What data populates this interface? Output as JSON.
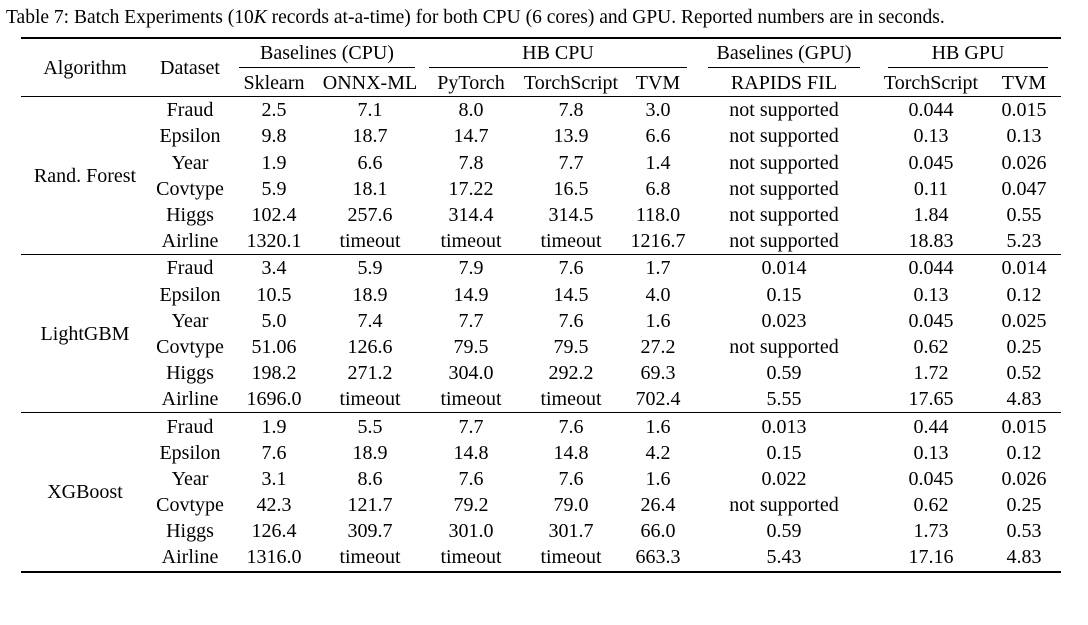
{
  "caption": {
    "prefix": "Table 7: Batch Experiments (10",
    "k": "K",
    "suffix": " records at-a-time) for both CPU (6 cores) and GPU. Reported numbers are in seconds."
  },
  "header": {
    "algorithm": "Algorithm",
    "dataset": "Dataset",
    "groups": [
      "Baselines (CPU)",
      "HB CPU",
      "Baselines (GPU)",
      "HB GPU"
    ],
    "columns": [
      "Sklearn",
      "ONNX-ML",
      "PyTorch",
      "TorchScript",
      "TVM",
      "RAPIDS FIL",
      "TorchScript",
      "TVM"
    ]
  },
  "blocks": [
    {
      "algorithm": "Rand. Forest",
      "rows": [
        {
          "dataset": "Fraud",
          "values": [
            "2.5",
            "7.1",
            "8.0",
            "7.8",
            "3.0",
            "not supported",
            "0.044",
            "0.015"
          ],
          "bold": [
            0,
            7
          ]
        },
        {
          "dataset": "Epsilon",
          "values": [
            "9.8",
            "18.7",
            "14.7",
            "13.9",
            "6.6",
            "not supported",
            "0.13",
            "0.13"
          ],
          "bold": [
            4,
            6,
            7
          ]
        },
        {
          "dataset": "Year",
          "values": [
            "1.9",
            "6.6",
            "7.8",
            "7.7",
            "1.4",
            "not supported",
            "0.045",
            "0.026"
          ],
          "bold": [
            4,
            7
          ]
        },
        {
          "dataset": "Covtype",
          "values": [
            "5.9",
            "18.1",
            "17.22",
            "16.5",
            "6.8",
            "not supported",
            "0.11",
            "0.047"
          ],
          "bold": [
            0,
            7
          ]
        },
        {
          "dataset": "Higgs",
          "values": [
            "102.4",
            "257.6",
            "314.4",
            "314.5",
            "118.0",
            "not supported",
            "1.84",
            "0.55"
          ],
          "bold": [
            0,
            7
          ]
        },
        {
          "dataset": "Airline",
          "values": [
            "1320.1",
            "timeout",
            "timeout",
            "timeout",
            "1216.7",
            "not supported",
            "18.83",
            "5.23"
          ],
          "bold": [
            4,
            7
          ]
        }
      ]
    },
    {
      "algorithm": "LightGBM",
      "rows": [
        {
          "dataset": "Fraud",
          "values": [
            "3.4",
            "5.9",
            "7.9",
            "7.6",
            "1.7",
            "0.014",
            "0.044",
            "0.014"
          ],
          "bold": [
            4,
            5,
            7
          ]
        },
        {
          "dataset": "Epsilon",
          "values": [
            "10.5",
            "18.9",
            "14.9",
            "14.5",
            "4.0",
            "0.15",
            "0.13",
            "0.12"
          ],
          "bold": [
            4,
            7
          ]
        },
        {
          "dataset": "Year",
          "values": [
            "5.0",
            "7.4",
            "7.7",
            "7.6",
            "1.6",
            "0.023",
            "0.045",
            "0.025"
          ],
          "bold": [
            4,
            5
          ]
        },
        {
          "dataset": "Covtype",
          "values": [
            "51.06",
            "126.6",
            "79.5",
            "79.5",
            "27.2",
            "not supported",
            "0.62",
            "0.25"
          ],
          "bold": [
            4,
            7
          ]
        },
        {
          "dataset": "Higgs",
          "values": [
            "198.2",
            "271.2",
            "304.0",
            "292.2",
            "69.3",
            "0.59",
            "1.72",
            "0.52"
          ],
          "bold": [
            4,
            7
          ]
        },
        {
          "dataset": "Airline",
          "values": [
            "1696.0",
            "timeout",
            "timeout",
            "timeout",
            "702.4",
            "5.55",
            "17.65",
            "4.83"
          ],
          "bold": [
            4,
            7
          ]
        }
      ]
    },
    {
      "algorithm": "XGBoost",
      "rows": [
        {
          "dataset": "Fraud",
          "values": [
            "1.9",
            "5.5",
            "7.7",
            "7.6",
            "1.6",
            "0.013",
            "0.44",
            "0.015"
          ],
          "bold": [
            4,
            5
          ]
        },
        {
          "dataset": "Epsilon",
          "values": [
            "7.6",
            "18.9",
            "14.8",
            "14.8",
            "4.2",
            "0.15",
            "0.13",
            "0.12"
          ],
          "bold": [
            4,
            7
          ]
        },
        {
          "dataset": "Year",
          "values": [
            "3.1",
            "8.6",
            "7.6",
            "7.6",
            "1.6",
            "0.022",
            "0.045",
            "0.026"
          ],
          "bold": [
            4,
            5
          ]
        },
        {
          "dataset": "Covtype",
          "values": [
            "42.3",
            "121.7",
            "79.2",
            "79.0",
            "26.4",
            "not supported",
            "0.62",
            "0.25"
          ],
          "bold": [
            4,
            7
          ]
        },
        {
          "dataset": "Higgs",
          "values": [
            "126.4",
            "309.7",
            "301.0",
            "301.7",
            "66.0",
            "0.59",
            "1.73",
            "0.53"
          ],
          "bold": [
            4,
            7
          ]
        },
        {
          "dataset": "Airline",
          "values": [
            "1316.0",
            "timeout",
            "timeout",
            "timeout",
            "663.3",
            "5.43",
            "17.16",
            "4.83"
          ],
          "bold": [
            4,
            7
          ]
        }
      ]
    }
  ]
}
